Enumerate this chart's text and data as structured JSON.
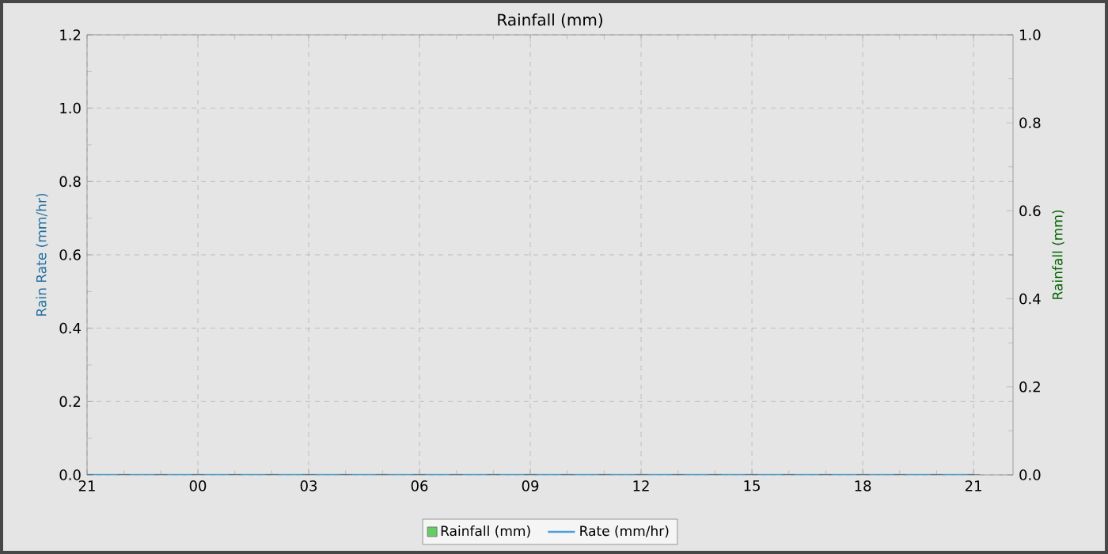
{
  "chart_data": {
    "type": "line",
    "title": "Rainfall (mm)",
    "ylabel": "Rain Rate (mm/hr)",
    "y2label": "Rainfall (mm)",
    "categories": [
      "21",
      null,
      null,
      "00",
      null,
      null,
      "03",
      null,
      null,
      "06",
      null,
      null,
      "09",
      null,
      null,
      "12",
      null,
      null,
      "15",
      null,
      null,
      "18",
      null,
      null,
      "21"
    ],
    "ylim": [
      0,
      1.2
    ],
    "yticks": [
      {
        "value": 0,
        "label": "0.0"
      },
      {
        "value": 0.2,
        "label": "0.2"
      },
      {
        "value": 0.4,
        "label": "0.4"
      },
      {
        "value": 0.6,
        "label": "0.6"
      },
      {
        "value": 0.8,
        "label": "0.8"
      },
      {
        "value": 1,
        "label": "1.0"
      },
      {
        "value": 1.2,
        "label": "1.2"
      }
    ],
    "y2lim": [
      0,
      1
    ],
    "y2ticks": [
      {
        "value": 0,
        "label": "0.0"
      },
      {
        "value": 0.2,
        "label": "0.2"
      },
      {
        "value": 0.4,
        "label": "0.4"
      },
      {
        "value": 0.6,
        "label": "0.6"
      },
      {
        "value": 0.8,
        "label": "0.8"
      },
      {
        "value": 1,
        "label": "1.0"
      }
    ],
    "grid": true,
    "legend": "bottom",
    "marker": "none",
    "series": [
      {
        "name": "Rainfall (mm)",
        "type": "bar",
        "axis": "y2",
        "color": "#66cc66",
        "values": [
          0,
          0,
          0,
          0,
          0,
          0,
          0,
          0,
          0,
          0,
          0,
          0,
          0,
          0,
          0,
          0,
          0,
          0,
          0,
          0,
          0,
          0,
          0,
          0,
          0
        ]
      },
      {
        "name": "Rate (mm/hr)",
        "color": "#4a9fd5",
        "values": [
          0,
          0,
          0,
          0,
          0,
          0,
          0,
          0,
          0,
          0,
          0,
          0,
          0,
          0,
          0,
          0,
          0,
          0,
          0,
          0,
          0,
          0,
          0,
          0,
          0
        ]
      }
    ]
  }
}
